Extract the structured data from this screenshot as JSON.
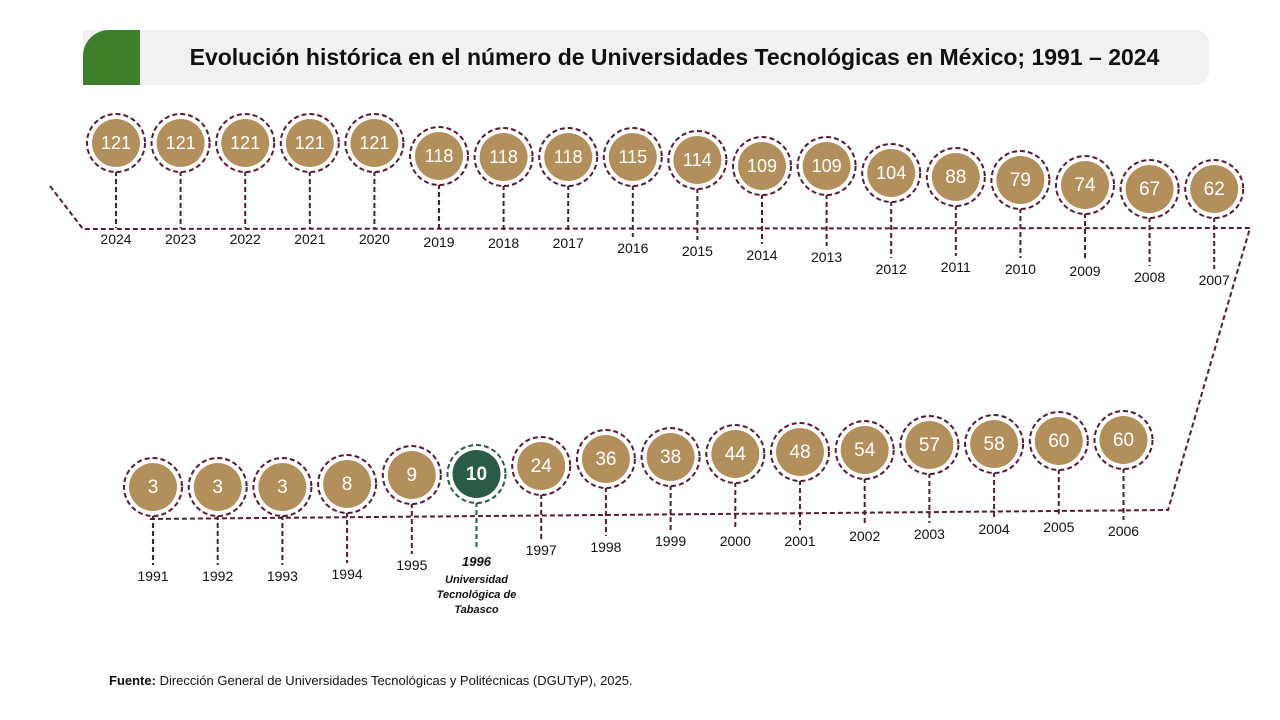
{
  "title": "Evolución histórica en el número de Universidades Tecnológicas en México; 1991 – 2024",
  "source": {
    "label": "Fuente:",
    "text": "Dirección General de Universidades Tecnológicas y Politécnicas (DGUTyP), 2025."
  },
  "colors": {
    "accent_green": "#3f7f2a",
    "circle_fill": "#b38f5c",
    "circle_border": "#5a1a33",
    "highlight_fill": "#2a5b47",
    "highlight_border": "#2a5b47"
  },
  "chart_data": {
    "type": "timeline",
    "series": [
      {
        "values": [
          {
            "year": "1991",
            "value": 3
          },
          {
            "year": "1992",
            "value": 3
          },
          {
            "year": "1993",
            "value": 3
          },
          {
            "year": "1994",
            "value": 8
          },
          {
            "year": "1995",
            "value": 9
          },
          {
            "year": "1996",
            "value": 10,
            "highlight": true
          },
          {
            "year": "1997",
            "value": 24
          },
          {
            "year": "1998",
            "value": 36
          },
          {
            "year": "1999",
            "value": 38
          },
          {
            "year": "2000",
            "value": 44
          },
          {
            "year": "2001",
            "value": 48
          },
          {
            "year": "2002",
            "value": 54
          },
          {
            "year": "2003",
            "value": 57
          },
          {
            "year": "2004",
            "value": 58
          },
          {
            "year": "2005",
            "value": 60
          },
          {
            "year": "2006",
            "value": 60
          },
          {
            "year": "2007",
            "value": 62
          },
          {
            "year": "2008",
            "value": 67
          },
          {
            "year": "2009",
            "value": 74
          },
          {
            "year": "2010",
            "value": 79
          },
          {
            "year": "2011",
            "value": 88
          },
          {
            "year": "2012",
            "value": 104
          },
          {
            "year": "2013",
            "value": 109
          },
          {
            "year": "2014",
            "value": 109
          },
          {
            "year": "2015",
            "value": 114
          },
          {
            "year": "2016",
            "value": 115
          },
          {
            "year": "2017",
            "value": 118
          },
          {
            "year": "2018",
            "value": 118
          },
          {
            "year": "2019",
            "value": 118
          },
          {
            "year": "2020",
            "value": 121
          },
          {
            "year": "2021",
            "value": 121
          },
          {
            "year": "2022",
            "value": 121
          },
          {
            "year": "2023",
            "value": 121
          },
          {
            "year": "2024",
            "value": 121
          }
        ]
      }
    ],
    "highlight_note": {
      "year": "1996",
      "lines": [
        "Universidad",
        "Tecnológica de",
        "Tabasco"
      ]
    }
  }
}
